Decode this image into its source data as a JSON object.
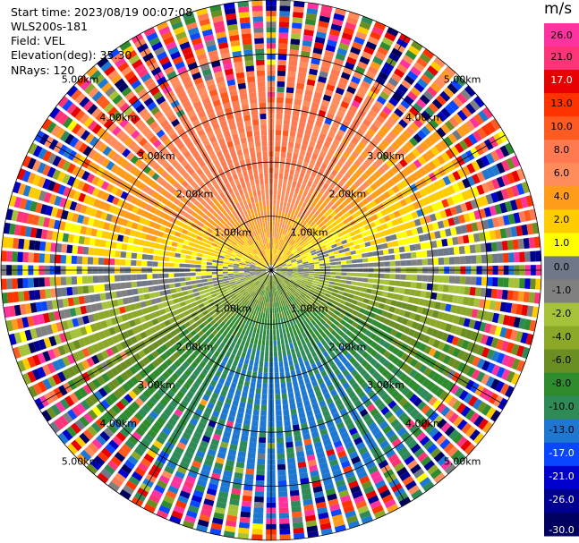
{
  "info": {
    "start_time": "Start time: 2023/08/19 00:07:08",
    "instrument": "WLS200s-181",
    "field": "Field: VEL",
    "elevation": "Elevation(deg): 35.30",
    "nrays": "NRays: 120"
  },
  "colorbar": {
    "unit": "m/s",
    "ticks": [
      "26.0",
      "21.0",
      "17.0",
      "13.0",
      "10.0",
      "8.0",
      "6.0",
      "4.0",
      "2.0",
      "1.0",
      "0.0",
      "-1.0",
      "-2.0",
      "-4.0",
      "-6.0",
      "-8.0",
      "-10.0",
      "-13.0",
      "-17.0",
      "-21.0",
      "-26.0",
      "-30.0"
    ],
    "bands": [
      {
        "from": 26,
        "to": 30,
        "color": "#ff33a0"
      },
      {
        "from": 21,
        "to": 26,
        "color": "#ff3377"
      },
      {
        "from": 17,
        "to": 21,
        "color": "#e60000"
      },
      {
        "from": 13,
        "to": 17,
        "color": "#ff3300"
      },
      {
        "from": 10,
        "to": 13,
        "color": "#ff5a1f"
      },
      {
        "from": 8,
        "to": 10,
        "color": "#ff7a50"
      },
      {
        "from": 6,
        "to": 8,
        "color": "#ff8c5a"
      },
      {
        "from": 4,
        "to": 6,
        "color": "#ff9d1a"
      },
      {
        "from": 2,
        "to": 4,
        "color": "#ffcc00"
      },
      {
        "from": 1,
        "to": 2,
        "color": "#ffff00"
      },
      {
        "from": 0,
        "to": 1,
        "color": "#6e7888"
      },
      {
        "from": -1,
        "to": 0,
        "color": "#808080"
      },
      {
        "from": -2,
        "to": -1,
        "color": "#a5c23a"
      },
      {
        "from": -4,
        "to": -2,
        "color": "#8ca828"
      },
      {
        "from": -6,
        "to": -4,
        "color": "#6b8e23"
      },
      {
        "from": -8,
        "to": -6,
        "color": "#2e8b2e"
      },
      {
        "from": -10,
        "to": -8,
        "color": "#2e8b57"
      },
      {
        "from": -13,
        "to": -10,
        "color": "#1e78d2"
      },
      {
        "from": -17,
        "to": -13,
        "color": "#0a46ff"
      },
      {
        "from": -21,
        "to": -17,
        "color": "#0000cd"
      },
      {
        "from": -26,
        "to": -21,
        "color": "#000090"
      },
      {
        "from": -30,
        "to": -26,
        "color": "#000060"
      }
    ]
  },
  "chart_data": {
    "type": "heatmap",
    "projection": "polar-ppi",
    "field": "VEL",
    "units": "m/s",
    "elevation_deg": 35.3,
    "nrays": 120,
    "range_unit": "km",
    "max_range_km": 5.0,
    "range_gate_km": 0.1,
    "vmin": -30.0,
    "vmax": 30.0,
    "range_rings_km": [
      1,
      2,
      3,
      4,
      5
    ],
    "range_ring_labels": [
      "1.00km",
      "2.00km",
      "3.00km",
      "4.00km",
      "5.00km"
    ],
    "spoke_azimuths_deg": [
      0,
      30,
      60,
      90,
      120,
      150,
      180,
      210,
      240,
      270,
      300,
      330
    ],
    "velocity_pattern": {
      "description": "dipole radial wind: receding toward north, approaching toward south, noisy beyond ~3 km",
      "peak_receding_ms": 9.0,
      "peak_receding_azimuth_deg": 355,
      "peak_approaching_ms": -11.0,
      "peak_approaching_azimuth_deg": 175,
      "clean_range_limit_km": 3.0,
      "noise_range_limit_km": 5.0
    }
  }
}
